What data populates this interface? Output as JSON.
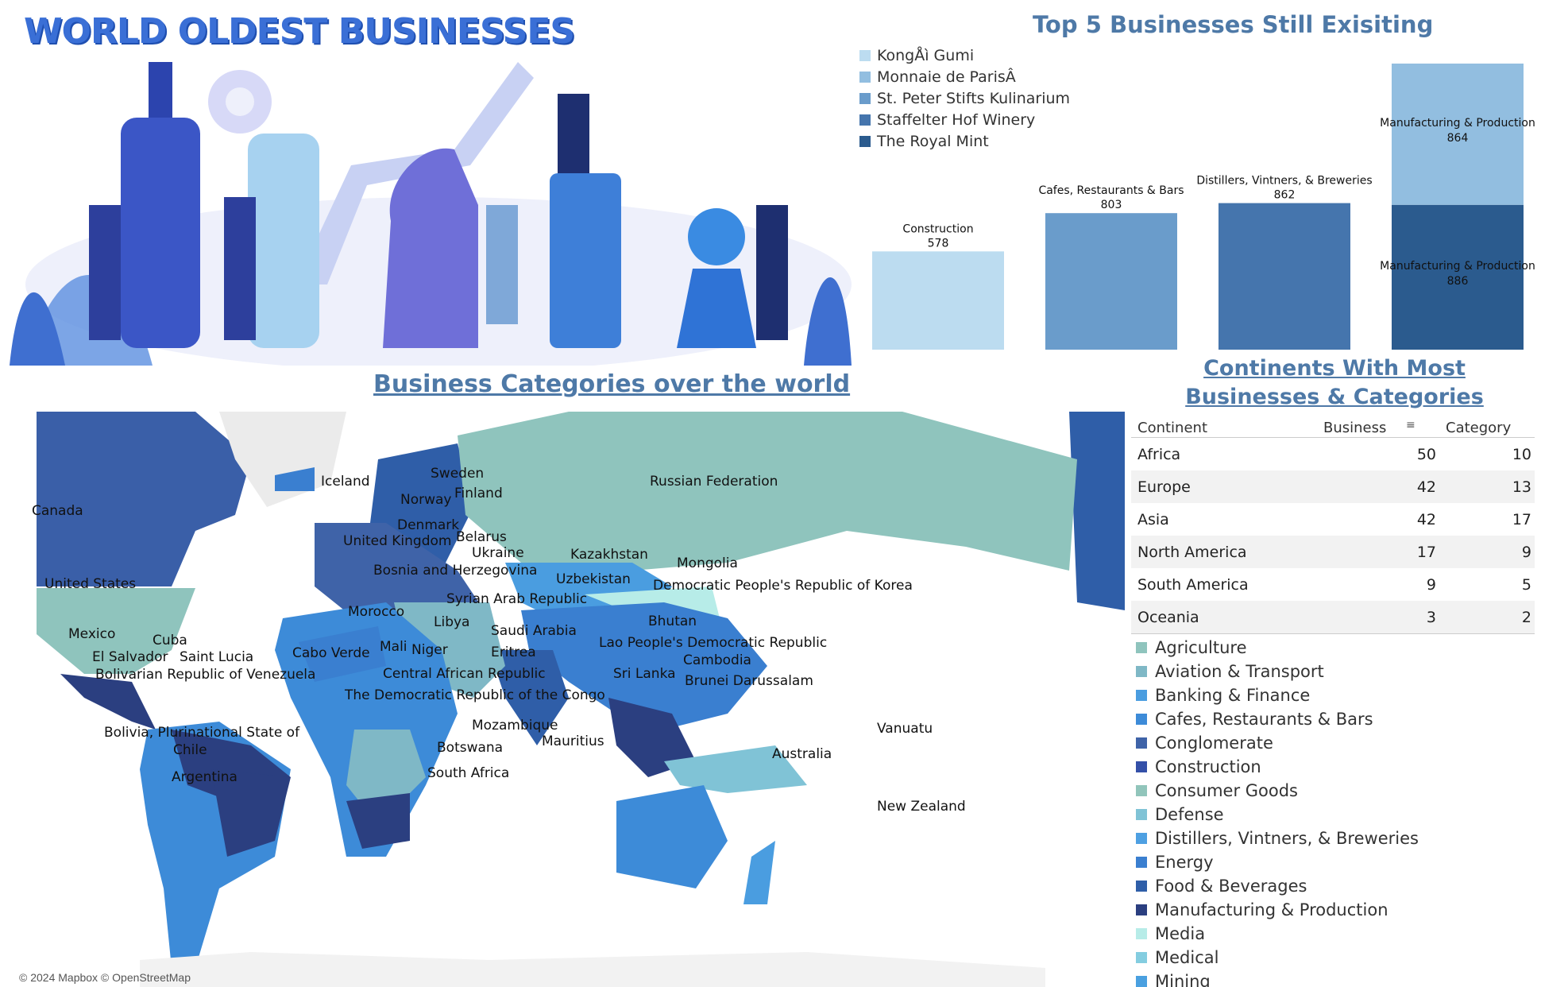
{
  "header": {
    "title": "WORLD OLDEST BUSINESSES"
  },
  "top5": {
    "title": "Top 5 Businesses Still Exisiting",
    "legend": [
      {
        "label": "KongÅì Gumi",
        "color": "#bcdcf0"
      },
      {
        "label": "Monnaie de ParisÂ",
        "color": "#92bee0"
      },
      {
        "label": "St. Peter Stifts Kulinarium",
        "color": "#6a9ccb"
      },
      {
        "label": "Staffelter Hof Winery",
        "color": "#4575ad"
      },
      {
        "label": "The Royal Mint",
        "color": "#2b5b8e"
      }
    ]
  },
  "chart_data": {
    "type": "bar",
    "title": "Top 5 Businesses Still Exisiting",
    "xlabel": "",
    "ylabel": "",
    "categories": [
      "Construction",
      "Cafes, Restaurants & Bars",
      "Distillers, Vintners, & Breweries",
      "Manufacturing & Production"
    ],
    "series": [
      {
        "name": "KongÅì Gumi",
        "values": [
          578,
          null,
          null,
          null
        ]
      },
      {
        "name": "St. Peter Stifts Kulinarium",
        "values": [
          null,
          803,
          null,
          null
        ]
      },
      {
        "name": "Staffelter Hof Winery",
        "values": [
          null,
          null,
          862,
          null
        ]
      },
      {
        "name": "The Royal Mint",
        "values": [
          null,
          null,
          null,
          886
        ]
      },
      {
        "name": "Monnaie de ParisÂ",
        "values": [
          null,
          null,
          null,
          864
        ]
      }
    ],
    "stacked": true,
    "bar_labels": [
      {
        "category": "Construction",
        "value": 578,
        "color": "#bcdcf0"
      },
      {
        "category": "Cafes, Restaurants & Bars",
        "value": 803,
        "color": "#6a9ccb"
      },
      {
        "category": "Distillers, Vintners, & Breweries",
        "value": 862,
        "color": "#4575ad"
      },
      {
        "category": "Manufacturing & Production",
        "value": 886,
        "color": "#2b5b8e"
      },
      {
        "category": "Manufacturing & Production",
        "value": 864,
        "color": "#92bee0"
      }
    ],
    "grid": false,
    "legend_position": "top-left"
  },
  "map": {
    "title": "Business Categories over the world",
    "attribution": "© 2024 Mapbox © OpenStreetMap",
    "labels": [
      "Canada",
      "United States",
      "Mexico",
      "Cuba",
      "El Salvador",
      "Saint Lucia",
      "Bolivarian Republic of Venezuela",
      "Bolivia, Plurinational State of",
      "Chile",
      "Argentina",
      "Iceland",
      "Sweden",
      "Norway",
      "Finland",
      "Denmark",
      "United Kingdom",
      "Belarus",
      "Ukraine",
      "Bosnia and Herzegovina",
      "Morocco",
      "Cabo Verde",
      "Mali",
      "Niger",
      "Libya",
      "Syrian Arab Republic",
      "Saudi Arabia",
      "Eritrea",
      "Central African Republic",
      "The Democratic Republic of the Congo",
      "Mozambique",
      "Botswana",
      "South Africa",
      "Mauritius",
      "Russian Federation",
      "Kazakhstan",
      "Uzbekistan",
      "Mongolia",
      "Democratic People's Republic of Korea",
      "Bhutan",
      "Lao People's Democratic Republic",
      "Cambodia",
      "Sri Lanka",
      "Brunei Darussalam",
      "Australia",
      "Vanuatu",
      "New Zealand"
    ]
  },
  "continents": {
    "title": "Continents With Most Businesses & Categories",
    "headers": {
      "continent": "Continent",
      "business": "Business",
      "category": "Category"
    },
    "rows": [
      {
        "continent": "Africa",
        "business": "50",
        "category": "10"
      },
      {
        "continent": "Europe",
        "business": "42",
        "category": "13"
      },
      {
        "continent": "Asia",
        "business": "42",
        "category": "17"
      },
      {
        "continent": "North America",
        "business": "17",
        "category": "9"
      },
      {
        "continent": "South America",
        "business": "9",
        "category": "5"
      },
      {
        "continent": "Oceania",
        "business": "3",
        "category": "2"
      }
    ]
  },
  "categories_legend": [
    {
      "label": "Agriculture",
      "color": "#8fc4bd"
    },
    {
      "label": "Aviation & Transport",
      "color": "#7fb8c6"
    },
    {
      "label": "Banking & Finance",
      "color": "#4a9de0"
    },
    {
      "label": "Cafes, Restaurants & Bars",
      "color": "#3d8bd8"
    },
    {
      "label": "Conglomerate",
      "color": "#3f63a8"
    },
    {
      "label": "Construction",
      "color": "#3450a8"
    },
    {
      "label": "Consumer Goods",
      "color": "#91c5bb"
    },
    {
      "label": "Defense",
      "color": "#80c3d6"
    },
    {
      "label": "Distillers, Vintners, & Breweries",
      "color": "#4ea0e2"
    },
    {
      "label": "Energy",
      "color": "#3a7fd0"
    },
    {
      "label": "Food & Beverages",
      "color": "#2f5ea8"
    },
    {
      "label": "Manufacturing & Production",
      "color": "#2b3f80"
    },
    {
      "label": "Media",
      "color": "#b7ece8"
    },
    {
      "label": "Medical",
      "color": "#84cde0"
    },
    {
      "label": "Mining",
      "color": "#4aa0e0"
    }
  ]
}
